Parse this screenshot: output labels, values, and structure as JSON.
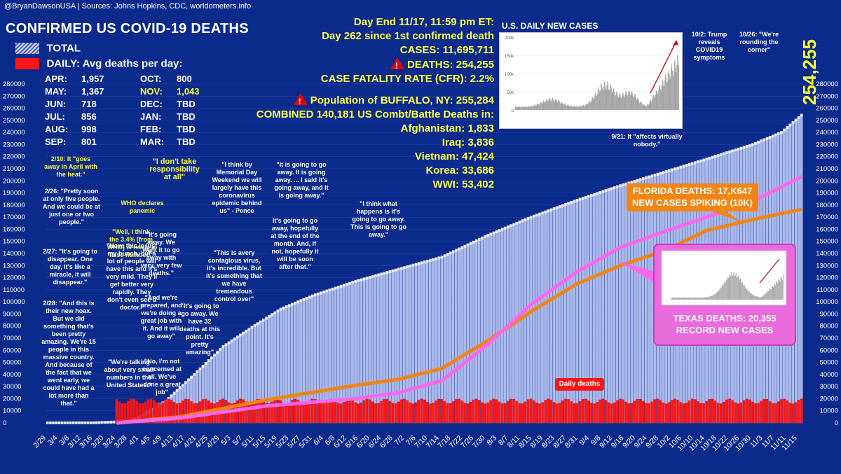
{
  "header": {
    "source": "@BryanDawsonUSA  |  Sources: Johns Hopkins, CDC, worldometers.info",
    "title": "CONFIRMED US COVID-19 DEATHS",
    "legend_total": "TOTAL",
    "legend_daily": "DAILY: Avg deaths per day:"
  },
  "avg_per_day": [
    {
      "m1": "APR:",
      "v1": "1,957",
      "m2": "OCT:",
      "v2": "800",
      "hl": false
    },
    {
      "m1": "MAY:",
      "v1": "1,367",
      "m2": "NOV:",
      "v2": "1,043",
      "hl": true
    },
    {
      "m1": "JUN:",
      "v1": "718",
      "m2": "DEC:",
      "v2": "TBD",
      "hl": false
    },
    {
      "m1": "JUL:",
      "v1": "856",
      "m2": "JAN:",
      "v2": "TBD",
      "hl": false
    },
    {
      "m1": "AUG:",
      "v1": "998",
      "m2": "FEB:",
      "v2": "TBD",
      "hl": false
    },
    {
      "m1": "SEP:",
      "v1": "801",
      "m2": "MAR:",
      "v2": "TBD",
      "hl": false
    }
  ],
  "stats": {
    "day_end": "Day End 11/17, 11:59 pm ET:",
    "day_count": "Day 262 since 1st confirmed death",
    "cases": "CASES: 11,695,711",
    "deaths": "DEATHS: 254,255",
    "cfr": "CASE FATALITY RATE (CFR): 2.2%",
    "buffalo": "Population of BUFFALO, NY: 255,284",
    "combined": "COMBINED 140,181 US Combt/Battle Deaths in:",
    "wars": [
      "Afghanistan: 1,833",
      "Iraq: 3,836",
      "Vietnam: 47,424",
      "Korea: 33,686",
      "WWI: 53,402"
    ]
  },
  "inset": {
    "title": "U.S. DAILY NEW CASES",
    "yticks": [
      "200k",
      "150k",
      "100k",
      "50k",
      "0"
    ],
    "note1": "10/2: Trump reveals COVID19 symptoms",
    "note2": "10/26: \"We're rounding the corner\"",
    "note3": "9/21: It \"affects virtually nobody.\""
  },
  "florida": {
    "line1": "FLORIDA DEATHS: 17,K647",
    "line2": "NEW CASES SPIKING (10K)"
  },
  "texas": {
    "line1": "TEXAS DEATHS: 20,355",
    "line2": "RECORD NEW CASES"
  },
  "big_total": "254,255",
  "daily_label": "Daily deaths",
  "annotations": [
    {
      "text": "2/10: It \"goes away in April with the heat.\"",
      "yellow": true
    },
    {
      "text": "2/26: \"Pretty soon at only five people. And we could be at just one or two people.\"",
      "yellow": false
    },
    {
      "text": "2/27: \"It's going to disappear. One day, it's like a miracle, it will disappear.\"",
      "yellow": false
    },
    {
      "text": "2/28: \"And this is their new hoax. But we did something that's been pretty amazing. We're 15 people in this massive country. And because of the fact that we went early, we could have had a lot more than that.\"",
      "yellow": false
    },
    {
      "text": "WHO declares panemic",
      "yellow": true
    },
    {
      "text": "\"Well, I think the 3.4% [from WHO] is really a false number.\"",
      "yellow": true
    },
    {
      "text": "\"Now, this is just my hunch, but a lot of people will have this and it's very mild. They'll get better very rapidly. They don't even see a doctor.\"",
      "yellow": false
    },
    {
      "text": "\"We're talking about very small numbers in the United States.\"",
      "yellow": false
    },
    {
      "text": "\"I don't take responsibility at all\"",
      "yellow": true
    },
    {
      "text": "\"It's going away. We want it to go away with very, very few deaths.\"",
      "yellow": false
    },
    {
      "text": "\"And we're prepared, and we're doing a great job with it. And it will go away\"",
      "yellow": false
    },
    {
      "text": "\"No, I'm not concerned at all. We've done a great job\"",
      "yellow": false
    },
    {
      "text": "\"It's going to go away. We have 32 deaths at this point. It's pretty amazing\"",
      "yellow": false
    },
    {
      "text": "\"I think by Memorial Day Weekend we will largely have this coronavirus epidemic behind us\" - Pence",
      "yellow": false
    },
    {
      "text": "\"This is avery contagious virus, it's incredible. But it's something that we have tremendous control over\"",
      "yellow": false
    },
    {
      "text": "\"It is going to go away. It is going away. ... I said it's going away, and it is going away.\"",
      "yellow": false
    },
    {
      "text": "It's going to go away, hopefully at the end of the month. And, if not, hopefully it will be soon after that.\"",
      "yellow": false
    },
    {
      "text": "\"I think what happens is it's going to go away. This is going to go away.\"",
      "yellow": false
    }
  ],
  "colors": {
    "background": "#0a2a8c",
    "total": "#dfe6ff",
    "daily": "#ff1414",
    "florida": "#f18515",
    "texas": "#ff66ee",
    "highlight": "#ffff33"
  },
  "chart_data": {
    "type": "bar",
    "title": "CONFIRMED US COVID-19 DEATHS",
    "ylim": [
      0,
      280000
    ],
    "yticks": [
      0,
      10000,
      20000,
      30000,
      40000,
      50000,
      60000,
      70000,
      80000,
      90000,
      100000,
      110000,
      120000,
      130000,
      140000,
      150000,
      160000,
      170000,
      180000,
      190000,
      200000,
      210000,
      220000,
      230000,
      240000,
      250000,
      260000,
      270000,
      280000
    ],
    "x_ticks": [
      "2/29",
      "3/4",
      "3/8",
      "3/12",
      "3/16",
      "3/20",
      "3/24",
      "3/28",
      "4/1",
      "4/5",
      "4/9",
      "4/13",
      "4/17",
      "4/21",
      "4/25",
      "4/29",
      "5/3",
      "5/7",
      "5/11",
      "5/15",
      "5/19",
      "5/23",
      "5/27",
      "5/31",
      "6/4",
      "6/8",
      "6/12",
      "6/16",
      "6/20",
      "6/24",
      "6/28",
      "7/2",
      "7/6",
      "7/10",
      "7/14",
      "7/18",
      "7/22",
      "7/26",
      "7/30",
      "8/3",
      "8/7",
      "8/11",
      "8/15",
      "8/19",
      "8/23",
      "8/27",
      "8/31",
      "9/4",
      "9/8",
      "9/12",
      "9/16",
      "9/20",
      "9/24",
      "9/28",
      "10/2",
      "10/6",
      "10/10",
      "10/14",
      "10/18",
      "10/22",
      "10/26",
      "10/30",
      "11/3",
      "11/7",
      "11/11",
      "11/15"
    ],
    "series": [
      {
        "name": "TOTAL",
        "points": [
          [
            "2/29",
            1
          ],
          [
            "3/16",
            90
          ],
          [
            "3/24",
            800
          ],
          [
            "3/31",
            4000
          ],
          [
            "4/10",
            18000
          ],
          [
            "4/20",
            40000
          ],
          [
            "4/30",
            63000
          ],
          [
            "5/10",
            79000
          ],
          [
            "5/20",
            94000
          ],
          [
            "5/31",
            105000
          ],
          [
            "6/15",
            117000
          ],
          [
            "6/30",
            127000
          ],
          [
            "7/15",
            137000
          ],
          [
            "7/31",
            155000
          ],
          [
            "8/15",
            170000
          ],
          [
            "8/31",
            184000
          ],
          [
            "9/15",
            196000
          ],
          [
            "9/30",
            207000
          ],
          [
            "10/15",
            218000
          ],
          [
            "10/31",
            230000
          ],
          [
            "11/10",
            240000
          ],
          [
            "11/17",
            254255
          ]
        ]
      },
      {
        "name": "DAILY",
        "points": [
          [
            "3/24",
            200
          ],
          [
            "4/1",
            1000
          ],
          [
            "4/15",
            2200
          ],
          [
            "4/30",
            2000
          ],
          [
            "5/15",
            1400
          ],
          [
            "5/31",
            900
          ],
          [
            "6/15",
            700
          ],
          [
            "6/30",
            750
          ],
          [
            "7/15",
            900
          ],
          [
            "7/31",
            1200
          ],
          [
            "8/15",
            1000
          ],
          [
            "8/31",
            900
          ],
          [
            "9/15",
            800
          ],
          [
            "9/30",
            800
          ],
          [
            "10/15",
            800
          ],
          [
            "10/31",
            900
          ],
          [
            "11/17",
            1600
          ]
        ]
      },
      {
        "name": "FLORIDA",
        "points": [
          [
            "3/24",
            0
          ],
          [
            "4/15",
            500
          ],
          [
            "5/15",
            1900
          ],
          [
            "6/15",
            3100
          ],
          [
            "6/30",
            3600
          ],
          [
            "7/15",
            4500
          ],
          [
            "7/31",
            6800
          ],
          [
            "8/15",
            9200
          ],
          [
            "8/31",
            11500
          ],
          [
            "9/15",
            13000
          ],
          [
            "9/30",
            14200
          ],
          [
            "10/15",
            15900
          ],
          [
            "10/31",
            16800
          ],
          [
            "11/17",
            17647
          ]
        ]
      },
      {
        "name": "TEXAS",
        "points": [
          [
            "3/24",
            0
          ],
          [
            "4/15",
            400
          ],
          [
            "5/15",
            1400
          ],
          [
            "6/15",
            2000
          ],
          [
            "6/30",
            2500
          ],
          [
            "7/15",
            3500
          ],
          [
            "7/31",
            6500
          ],
          [
            "8/15",
            9800
          ],
          [
            "8/31",
            12500
          ],
          [
            "9/15",
            14500
          ],
          [
            "9/30",
            15800
          ],
          [
            "10/15",
            17000
          ],
          [
            "10/31",
            18300
          ],
          [
            "11/17",
            20355
          ]
        ]
      }
    ]
  }
}
